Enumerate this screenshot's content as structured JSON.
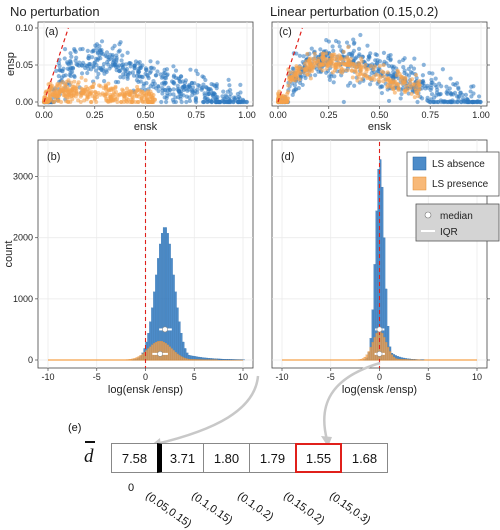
{
  "titles": {
    "left": "No perturbation",
    "right": "Linear perturbation (0.15,0.2)"
  },
  "panel_tags": {
    "a": "(a)",
    "b": "(b)",
    "c": "(c)",
    "d": "(d)",
    "e": "(e)"
  },
  "colors": {
    "absence": "#2e78c0",
    "presence": "#f5a24b",
    "ref_line": "#e0201b",
    "grid": "#e8e8e8",
    "highlight": "#e0201b"
  },
  "legend": {
    "absence_label": "LS absence",
    "presence_label": "LS presence",
    "median_label": "median",
    "iqr_label": "IQR"
  },
  "chart_data": [
    {
      "id": "a",
      "type": "scatter",
      "title": "No perturbation",
      "xlabel": "ensk",
      "ylabel": "ensp",
      "xlim": [
        0,
        1
      ],
      "ylim": [
        0,
        0.1
      ],
      "xticks": [
        "0.00",
        "0.25",
        "0.50",
        "0.75",
        "1.00"
      ],
      "yticks": [
        "0.00",
        "0.05",
        "0.10"
      ],
      "reference_line": "y = x (dashed red)",
      "series": [
        {
          "name": "LS absence",
          "color": "#2e78c0",
          "shape": "hump",
          "description_points": [
            [
              0.05,
              0.03
            ],
            [
              0.15,
              0.06
            ],
            [
              0.25,
              0.065
            ],
            [
              0.35,
              0.06
            ],
            [
              0.5,
              0.045
            ],
            [
              0.65,
              0.03
            ],
            [
              0.8,
              0.015
            ],
            [
              1.0,
              0.0
            ]
          ]
        },
        {
          "name": "LS presence",
          "color": "#f5a24b",
          "shape": "low band",
          "description_points": [
            [
              0.02,
              0.01
            ],
            [
              0.1,
              0.015
            ],
            [
              0.2,
              0.012
            ],
            [
              0.3,
              0.01
            ],
            [
              0.4,
              0.006
            ],
            [
              0.55,
              0.003
            ]
          ]
        }
      ]
    },
    {
      "id": "c",
      "type": "scatter",
      "title": "Linear perturbation (0.15,0.2)",
      "xlabel": "ensk",
      "ylabel": "ensp",
      "xlim": [
        0,
        1
      ],
      "ylim": [
        0,
        0.1
      ],
      "xticks": [
        "0.00",
        "0.25",
        "0.50",
        "0.75",
        "1.00"
      ],
      "yticks": [
        "0.00",
        "0.05",
        "0.10"
      ],
      "reference_line": "y = x (dashed red)",
      "series": [
        {
          "name": "LS absence",
          "color": "#2e78c0",
          "shape": "hump",
          "description_points": [
            [
              0.05,
              0.035
            ],
            [
              0.15,
              0.06
            ],
            [
              0.25,
              0.068
            ],
            [
              0.35,
              0.065
            ],
            [
              0.5,
              0.05
            ],
            [
              0.65,
              0.035
            ],
            [
              0.8,
              0.018
            ],
            [
              1.0,
              0.0
            ]
          ]
        },
        {
          "name": "LS presence",
          "color": "#f5a24b",
          "shape": "hump",
          "description_points": [
            [
              0.05,
              0.03
            ],
            [
              0.15,
              0.05
            ],
            [
              0.25,
              0.055
            ],
            [
              0.35,
              0.05
            ],
            [
              0.45,
              0.04
            ],
            [
              0.55,
              0.03
            ],
            [
              0.7,
              0.02
            ]
          ]
        }
      ]
    },
    {
      "id": "b",
      "type": "bar",
      "xlabel": "log(ensk /ensp)",
      "ylabel": "count",
      "xlim": [
        -10,
        10
      ],
      "ylim": [
        0,
        3500
      ],
      "xticks": [
        "-10",
        "-5",
        "0",
        "5",
        "10"
      ],
      "yticks": [
        "0",
        "1000",
        "2000",
        "3000"
      ],
      "reference_x": 0,
      "series": [
        {
          "name": "LS absence",
          "color": "#2e78c0",
          "center": 2.0,
          "sd": 0.95,
          "peak": 2180,
          "median": 2.0,
          "iqr": [
            1.4,
            2.7
          ]
        },
        {
          "name": "LS presence",
          "color": "#f5a24b",
          "center": 1.5,
          "sd": 1.2,
          "peak": 310,
          "median": 1.5,
          "iqr": [
            0.7,
            2.3
          ]
        }
      ]
    },
    {
      "id": "d",
      "type": "bar",
      "xlabel": "log(ensk /ensp)",
      "ylabel": "count",
      "xlim": [
        -10,
        10
      ],
      "ylim": [
        0,
        3500
      ],
      "xticks": [
        "-10",
        "-5",
        "0",
        "5",
        "10"
      ],
      "yticks": [
        "0",
        "1000",
        "2000",
        "3000"
      ],
      "reference_x": 0,
      "series": [
        {
          "name": "LS absence",
          "color": "#2e78c0",
          "center": 0.05,
          "sd": 0.45,
          "peak": 3300,
          "median": 0.0,
          "iqr": [
            -0.45,
            0.5
          ]
        },
        {
          "name": "LS presence",
          "color": "#f5a24b",
          "center": 0.0,
          "sd": 0.7,
          "peak": 480,
          "median": 0.0,
          "iqr": [
            -0.5,
            0.55
          ]
        }
      ]
    },
    {
      "id": "e",
      "type": "table",
      "row_label": "d",
      "columns": [
        "0",
        "(0.05,0.15)",
        "(0.1,0.15)",
        "(0.1,0.2)",
        "(0.15,0.2)",
        "(0.15,0.3)"
      ],
      "values": [
        "7.58",
        "3.71",
        "1.80",
        "1.79",
        "1.55",
        "1.68"
      ],
      "highlighted": "(0.15,0.2)"
    }
  ]
}
